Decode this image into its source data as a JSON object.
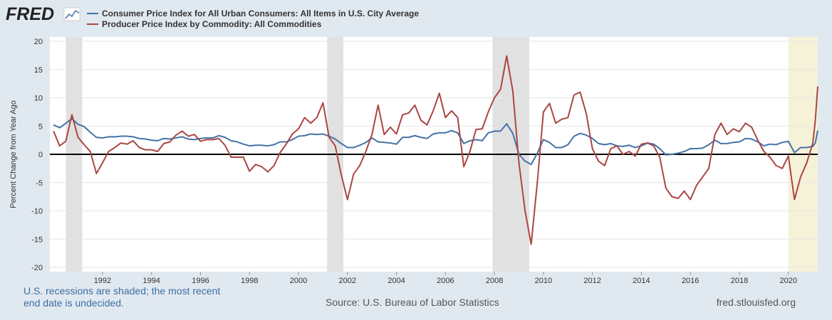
{
  "logo": "FRED",
  "chart_data": {
    "type": "line",
    "y_label": "Percent Change from Year Ago",
    "note": "U.S. recessions are shaded; the most recent end date is undecided.",
    "source": "Source: U.S. Bureau of Labor Statistics",
    "url": "fred.stlouisfed.org",
    "xlim": [
      1989.85,
      2021.2
    ],
    "xticks": [
      1992,
      1994,
      1996,
      1998,
      2000,
      2002,
      2004,
      2006,
      2008,
      2010,
      2012,
      2014,
      2016,
      2018,
      2020
    ],
    "ylim": [
      -20,
      20
    ],
    "yticks": [
      -20,
      -15,
      -10,
      -5,
      0,
      5,
      10,
      15,
      20
    ],
    "grid": true,
    "recessions": [
      {
        "start": 1990.5,
        "end": 1991.17,
        "color": "#e1e1e1"
      },
      {
        "start": 2001.17,
        "end": 2001.83,
        "color": "#e1e1e1"
      },
      {
        "start": 2007.92,
        "end": 2009.42,
        "color": "#e1e1e1"
      },
      {
        "start": 2020.0,
        "end": 2021.2,
        "color": "#f6f2d8"
      }
    ],
    "x": [
      1990.0,
      1990.25,
      1990.5,
      1990.75,
      1991.0,
      1991.25,
      1991.5,
      1991.75,
      1992.0,
      1992.25,
      1992.5,
      1992.75,
      1993.0,
      1993.25,
      1993.5,
      1993.75,
      1994.0,
      1994.25,
      1994.5,
      1994.75,
      1995.0,
      1995.25,
      1995.5,
      1995.75,
      1996.0,
      1996.25,
      1996.5,
      1996.75,
      1997.0,
      1997.25,
      1997.5,
      1997.75,
      1998.0,
      1998.25,
      1998.5,
      1998.75,
      1999.0,
      1999.25,
      1999.5,
      1999.75,
      2000.0,
      2000.25,
      2000.5,
      2000.75,
      2001.0,
      2001.25,
      2001.5,
      2001.75,
      2002.0,
      2002.25,
      2002.5,
      2002.75,
      2003.0,
      2003.25,
      2003.5,
      2003.75,
      2004.0,
      2004.25,
      2004.5,
      2004.75,
      2005.0,
      2005.25,
      2005.5,
      2005.75,
      2006.0,
      2006.25,
      2006.5,
      2006.75,
      2007.0,
      2007.25,
      2007.5,
      2007.75,
      2008.0,
      2008.25,
      2008.5,
      2008.75,
      2009.0,
      2009.25,
      2009.5,
      2009.75,
      2010.0,
      2010.25,
      2010.5,
      2010.75,
      2011.0,
      2011.25,
      2011.5,
      2011.75,
      2012.0,
      2012.25,
      2012.5,
      2012.75,
      2013.0,
      2013.25,
      2013.5,
      2013.75,
      2014.0,
      2014.25,
      2014.5,
      2014.75,
      2015.0,
      2015.25,
      2015.5,
      2015.75,
      2016.0,
      2016.25,
      2016.5,
      2016.75,
      2017.0,
      2017.25,
      2017.5,
      2017.75,
      2018.0,
      2018.25,
      2018.5,
      2018.75,
      2019.0,
      2019.25,
      2019.5,
      2019.75,
      2020.0,
      2020.25,
      2020.5,
      2020.75,
      2021.0,
      2021.1,
      2021.2
    ],
    "series": [
      {
        "name": "Consumer Price Index for All Urban Consumers: All Items in U.S. City Average",
        "color": "#4572a7",
        "values": [
          5.2,
          4.7,
          5.5,
          6.3,
          5.3,
          4.9,
          3.9,
          3.0,
          2.9,
          3.1,
          3.1,
          3.2,
          3.2,
          3.1,
          2.8,
          2.7,
          2.5,
          2.4,
          2.8,
          2.7,
          2.9,
          3.1,
          2.7,
          2.6,
          2.8,
          2.9,
          2.9,
          3.3,
          3.0,
          2.4,
          2.2,
          1.8,
          1.5,
          1.6,
          1.6,
          1.5,
          1.7,
          2.2,
          2.2,
          2.6,
          3.2,
          3.3,
          3.6,
          3.5,
          3.6,
          3.2,
          2.7,
          1.9,
          1.2,
          1.2,
          1.6,
          2.1,
          2.9,
          2.2,
          2.1,
          2.0,
          1.8,
          3.0,
          3.0,
          3.3,
          3.0,
          2.8,
          3.6,
          3.8,
          3.8,
          4.2,
          3.8,
          1.9,
          2.4,
          2.6,
          2.4,
          3.8,
          4.1,
          4.1,
          5.4,
          3.7,
          0.0,
          -1.2,
          -1.8,
          0.2,
          2.6,
          2.1,
          1.2,
          1.2,
          1.7,
          3.2,
          3.7,
          3.4,
          2.8,
          1.9,
          1.7,
          1.9,
          1.5,
          1.4,
          1.6,
          1.2,
          1.5,
          2.0,
          1.8,
          1.0,
          -0.1,
          0.0,
          0.2,
          0.5,
          1.0,
          1.0,
          1.1,
          1.7,
          2.5,
          1.9,
          1.9,
          2.1,
          2.2,
          2.8,
          2.7,
          2.2,
          1.5,
          1.8,
          1.7,
          2.1,
          2.3,
          0.3,
          1.2,
          1.2,
          1.4,
          2.0,
          4.2
        ]
      },
      {
        "name": "Producer Price Index by Commodity: All Commodities",
        "color": "#aa4643",
        "values": [
          4.1,
          1.5,
          2.3,
          7.0,
          3.0,
          1.7,
          0.5,
          -3.4,
          -1.5,
          0.5,
          1.2,
          2.0,
          1.8,
          2.4,
          1.2,
          0.8,
          0.8,
          0.5,
          1.9,
          2.2,
          3.4,
          4.1,
          3.2,
          3.5,
          2.3,
          2.6,
          2.6,
          2.8,
          1.6,
          -0.5,
          -0.5,
          -0.5,
          -3.0,
          -1.8,
          -2.2,
          -3.1,
          -2.0,
          0.3,
          1.8,
          3.6,
          4.5,
          6.5,
          5.5,
          6.5,
          9.1,
          3.0,
          1.5,
          -3.7,
          -8.0,
          -3.5,
          -2.0,
          0.5,
          3.5,
          8.7,
          3.5,
          4.8,
          3.6,
          7.0,
          7.3,
          8.7,
          6.0,
          5.2,
          7.7,
          10.8,
          6.5,
          7.7,
          6.5,
          -2.2,
          0.5,
          4.4,
          4.5,
          7.5,
          10.0,
          11.5,
          17.4,
          11.2,
          -1.5,
          -10.0,
          -15.9,
          -5.0,
          7.5,
          9.0,
          5.5,
          6.2,
          6.5,
          10.5,
          11.0,
          7.2,
          1.0,
          -1.2,
          -2.0,
          1.0,
          1.5,
          0.0,
          0.5,
          -0.3,
          1.8,
          2.0,
          1.5,
          -0.5,
          -6.0,
          -7.5,
          -7.8,
          -6.5,
          -8.0,
          -5.5,
          -4.0,
          -2.5,
          3.5,
          5.5,
          3.5,
          4.5,
          4.0,
          5.5,
          4.8,
          2.5,
          0.5,
          -0.5,
          -2.0,
          -2.5,
          -0.3,
          -8.0,
          -4.0,
          -1.5,
          2.0,
          6.0,
          12.0
        ]
      }
    ]
  }
}
